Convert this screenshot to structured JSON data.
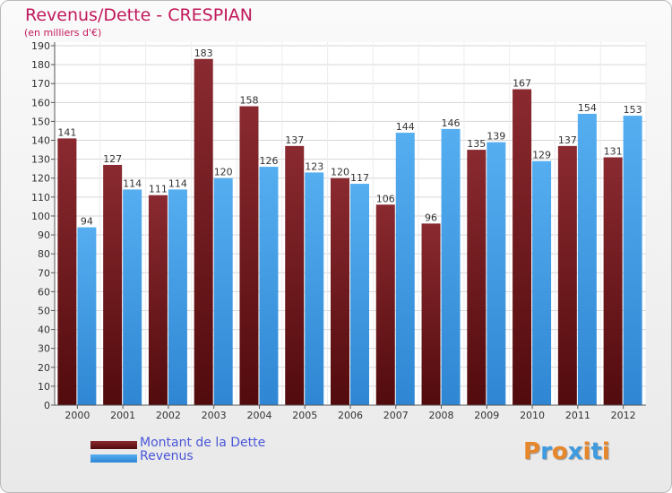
{
  "chart_data": {
    "type": "bar",
    "title": "Revenus/Dette - CRESPIAN",
    "subtitle": "(en milliers d'€)",
    "categories": [
      "2000",
      "2001",
      "2002",
      "2003",
      "2004",
      "2005",
      "2006",
      "2007",
      "2008",
      "2009",
      "2010",
      "2011",
      "2012"
    ],
    "series": [
      {
        "name": "Montant de la Dette",
        "color": "#7a1f24",
        "values": [
          141,
          127,
          111,
          183,
          158,
          137,
          120,
          106,
          96,
          135,
          167,
          137,
          131
        ]
      },
      {
        "name": "Revenus",
        "color": "#3b9ae6",
        "values": [
          94,
          114,
          114,
          120,
          126,
          123,
          117,
          144,
          146,
          139,
          129,
          154,
          153
        ]
      }
    ],
    "ylim": [
      0,
      190
    ],
    "yticks": [
      0,
      10,
      20,
      30,
      40,
      50,
      60,
      70,
      80,
      90,
      100,
      110,
      120,
      130,
      140,
      150,
      160,
      170,
      180,
      190
    ],
    "grid": true,
    "legend_position": "bottom-left"
  },
  "logo": {
    "text": "Proxiti",
    "colors": [
      "#e8862a",
      "#3f9be0",
      "#e8862a",
      "#3f9be0",
      "#e8862a",
      "#3f9be0",
      "#e8862a"
    ]
  }
}
